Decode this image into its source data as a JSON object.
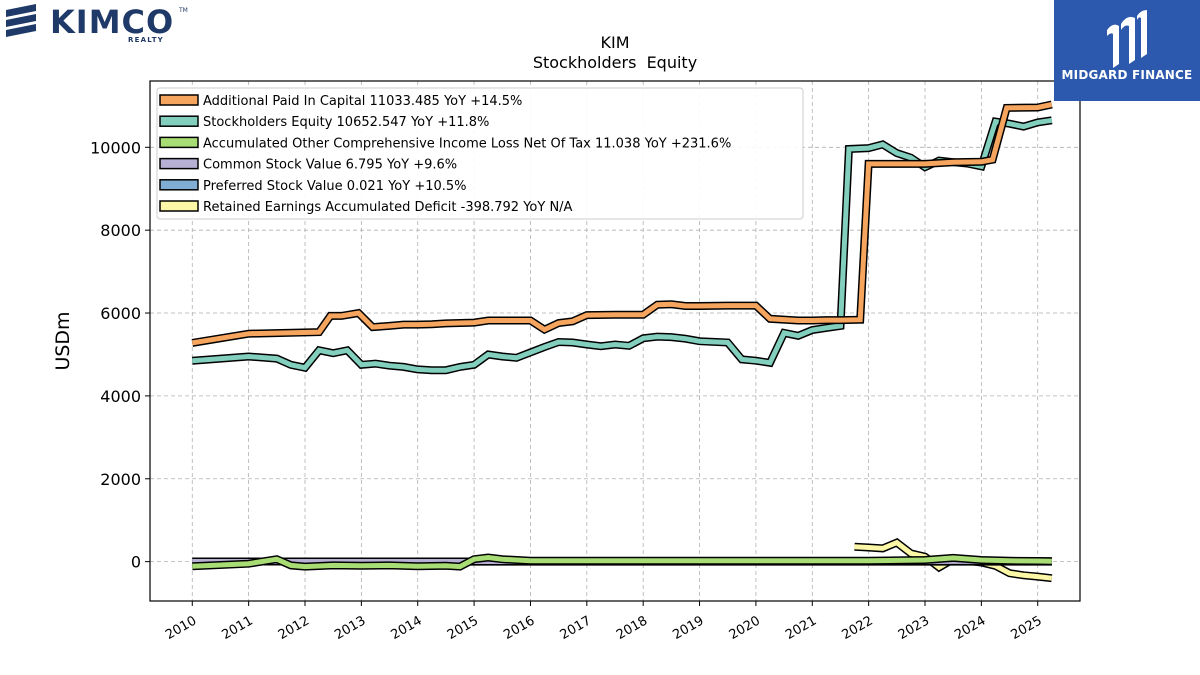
{
  "branding": {
    "company_logo_name": "KIMCO",
    "company_logo_tm": "TM",
    "company_logo_sub": "REALTY",
    "publisher_logo_name": "MIDGARD FINANCE"
  },
  "chart_data": {
    "type": "line",
    "title": "KIM",
    "subtitle": "Stockholders  Equity",
    "ylabel": "USDm",
    "xlabel": "",
    "ylim": [
      -950,
      11600
    ],
    "xlim": [
      2009.25,
      2025.75
    ],
    "yticks": [
      0,
      2000,
      4000,
      6000,
      8000,
      10000
    ],
    "xticks": [
      "2010",
      "2011",
      "2012",
      "2013",
      "2014",
      "2015",
      "2016",
      "2017",
      "2018",
      "2019",
      "2020",
      "2021",
      "2022",
      "2023",
      "2024",
      "2025"
    ],
    "grid": true,
    "legend_position": "top-left",
    "series": [
      {
        "name": "Additional Paid In Capital",
        "legend": "Additional Paid In Capital  11033.485 YoY +14.5%",
        "color": "#f6a55f",
        "points": [
          [
            2010.0,
            5280
          ],
          [
            2011.0,
            5500
          ],
          [
            2012.25,
            5540
          ],
          [
            2012.45,
            5930
          ],
          [
            2012.65,
            5930
          ],
          [
            2012.95,
            6000
          ],
          [
            2013.2,
            5660
          ],
          [
            2013.5,
            5690
          ],
          [
            2013.75,
            5720
          ],
          [
            2014.0,
            5720
          ],
          [
            2014.25,
            5730
          ],
          [
            2014.5,
            5750
          ],
          [
            2015.0,
            5770
          ],
          [
            2015.25,
            5820
          ],
          [
            2015.5,
            5820
          ],
          [
            2016.0,
            5820
          ],
          [
            2016.25,
            5600
          ],
          [
            2016.5,
            5760
          ],
          [
            2016.75,
            5800
          ],
          [
            2017.0,
            5950
          ],
          [
            2017.5,
            5960
          ],
          [
            2018.0,
            5960
          ],
          [
            2018.25,
            6200
          ],
          [
            2018.5,
            6210
          ],
          [
            2018.75,
            6170
          ],
          [
            2019.0,
            6170
          ],
          [
            2019.5,
            6180
          ],
          [
            2020.0,
            6180
          ],
          [
            2020.25,
            5860
          ],
          [
            2020.75,
            5820
          ],
          [
            2021.0,
            5820
          ],
          [
            2021.25,
            5830
          ],
          [
            2021.5,
            5830
          ],
          [
            2021.85,
            5840
          ],
          [
            2022.0,
            9600
          ],
          [
            2022.5,
            9600
          ],
          [
            2023.0,
            9600
          ],
          [
            2023.5,
            9640
          ],
          [
            2024.0,
            9650
          ],
          [
            2024.2,
            9700
          ],
          [
            2024.45,
            10950
          ],
          [
            2025.0,
            10960
          ],
          [
            2025.25,
            11033
          ]
        ]
      },
      {
        "name": "Stockholders Equity",
        "legend": "Stockholders Equity  10652.547 YoY +11.8%",
        "color": "#82cfbe",
        "points": [
          [
            2010.0,
            4850
          ],
          [
            2011.0,
            4950
          ],
          [
            2011.5,
            4900
          ],
          [
            2011.75,
            4750
          ],
          [
            2012.0,
            4680
          ],
          [
            2012.25,
            5100
          ],
          [
            2012.5,
            5030
          ],
          [
            2012.75,
            5100
          ],
          [
            2013.0,
            4750
          ],
          [
            2013.25,
            4780
          ],
          [
            2013.5,
            4730
          ],
          [
            2013.75,
            4700
          ],
          [
            2014.0,
            4640
          ],
          [
            2014.25,
            4620
          ],
          [
            2014.5,
            4620
          ],
          [
            2014.75,
            4700
          ],
          [
            2015.0,
            4750
          ],
          [
            2015.25,
            5000
          ],
          [
            2015.5,
            4950
          ],
          [
            2015.75,
            4920
          ],
          [
            2016.0,
            5050
          ],
          [
            2016.25,
            5180
          ],
          [
            2016.5,
            5300
          ],
          [
            2016.75,
            5290
          ],
          [
            2017.0,
            5240
          ],
          [
            2017.25,
            5200
          ],
          [
            2017.5,
            5240
          ],
          [
            2017.75,
            5210
          ],
          [
            2018.0,
            5390
          ],
          [
            2018.25,
            5430
          ],
          [
            2018.5,
            5420
          ],
          [
            2018.75,
            5380
          ],
          [
            2019.0,
            5320
          ],
          [
            2019.5,
            5290
          ],
          [
            2019.75,
            4880
          ],
          [
            2020.0,
            4850
          ],
          [
            2020.25,
            4800
          ],
          [
            2020.5,
            5520
          ],
          [
            2020.75,
            5450
          ],
          [
            2021.0,
            5590
          ],
          [
            2021.25,
            5640
          ],
          [
            2021.5,
            5690
          ],
          [
            2021.65,
            9960
          ],
          [
            2022.0,
            9980
          ],
          [
            2022.25,
            10070
          ],
          [
            2022.5,
            9860
          ],
          [
            2022.75,
            9750
          ],
          [
            2023.0,
            9520
          ],
          [
            2023.25,
            9680
          ],
          [
            2023.5,
            9640
          ],
          [
            2023.75,
            9610
          ],
          [
            2024.0,
            9540
          ],
          [
            2024.25,
            10620
          ],
          [
            2024.5,
            10570
          ],
          [
            2024.75,
            10500
          ],
          [
            2025.0,
            10600
          ],
          [
            2025.25,
            10652
          ]
        ]
      },
      {
        "name": "Accumulated Other Comprehensive Income Loss Net Of Tax",
        "legend": "Accumulated Other Comprehensive Income Loss Net Of Tax  11.038 YoY +231.6%",
        "color": "#a8dd75",
        "points": [
          [
            2010.0,
            -110
          ],
          [
            2011.0,
            -50
          ],
          [
            2011.5,
            60
          ],
          [
            2011.75,
            -90
          ],
          [
            2012.0,
            -120
          ],
          [
            2012.5,
            -90
          ],
          [
            2013.0,
            -100
          ],
          [
            2013.5,
            -90
          ],
          [
            2014.0,
            -110
          ],
          [
            2014.5,
            -100
          ],
          [
            2014.75,
            -120
          ],
          [
            2015.0,
            60
          ],
          [
            2015.25,
            100
          ],
          [
            2015.5,
            60
          ],
          [
            2016.0,
            20
          ],
          [
            2017.0,
            20
          ],
          [
            2018.0,
            20
          ],
          [
            2019.0,
            20
          ],
          [
            2020.0,
            20
          ],
          [
            2021.0,
            20
          ],
          [
            2022.0,
            20
          ],
          [
            2022.5,
            30
          ],
          [
            2023.0,
            40
          ],
          [
            2023.5,
            90
          ],
          [
            2024.0,
            40
          ],
          [
            2024.5,
            20
          ],
          [
            2025.0,
            15
          ],
          [
            2025.25,
            11
          ]
        ]
      },
      {
        "name": "Common Stock Value",
        "legend": "Common Stock Value  6.795 YoY +9.6%",
        "color": "#b5b0d4",
        "points": [
          [
            2010.0,
            4
          ],
          [
            2012.0,
            4
          ],
          [
            2014.0,
            4
          ],
          [
            2016.0,
            4
          ],
          [
            2018.0,
            4
          ],
          [
            2020.0,
            4
          ],
          [
            2022.0,
            4
          ],
          [
            2024.0,
            6
          ],
          [
            2025.25,
            7
          ]
        ]
      },
      {
        "name": "Preferred Stock Value",
        "legend": "Preferred Stock Value  0.021 YoY +10.5%",
        "color": "#7fadd4",
        "points": [
          [
            2012.0,
            0
          ],
          [
            2014.0,
            0
          ],
          [
            2016.0,
            0
          ],
          [
            2018.0,
            0
          ],
          [
            2020.0,
            0
          ],
          [
            2022.0,
            0
          ],
          [
            2024.0,
            0
          ],
          [
            2025.25,
            0
          ]
        ]
      },
      {
        "name": "Retained Earnings Accumulated Deficit",
        "legend": "Retained Earnings Accumulated Deficit  -398.792 YoY N/A",
        "color": "#fbf7a6",
        "points": [
          [
            2021.75,
            360
          ],
          [
            2022.0,
            340
          ],
          [
            2022.25,
            320
          ],
          [
            2022.5,
            460
          ],
          [
            2022.75,
            200
          ],
          [
            2023.0,
            120
          ],
          [
            2023.25,
            -140
          ],
          [
            2023.5,
            60
          ],
          [
            2023.75,
            20
          ],
          [
            2024.0,
            -20
          ],
          [
            2024.25,
            -100
          ],
          [
            2024.5,
            -280
          ],
          [
            2024.75,
            -330
          ],
          [
            2025.0,
            -360
          ],
          [
            2025.25,
            -399
          ]
        ]
      }
    ]
  }
}
